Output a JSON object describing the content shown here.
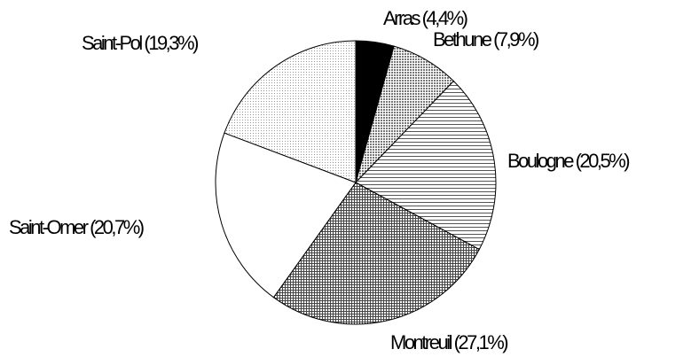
{
  "chart_data": {
    "type": "pie",
    "categories": [
      "Arras",
      "Bethune",
      "Boulogne",
      "Montreuil",
      "Saint-Omer",
      "Saint-Pol"
    ],
    "values": [
      4.4,
      7.9,
      20.5,
      27.1,
      20.7,
      19.3
    ],
    "value_labels": [
      "Arras (4,4%)",
      "Bethune (7,9%)",
      "Boulogne (20,5%)",
      "Montreuil (27,1%)",
      "Saint-Omer (20,7%)",
      "Saint-Pol (19,3%)"
    ],
    "colors": [
      "#000000",
      "#777777",
      "#555555",
      "#444444",
      "#ffffff",
      "#999999"
    ]
  }
}
